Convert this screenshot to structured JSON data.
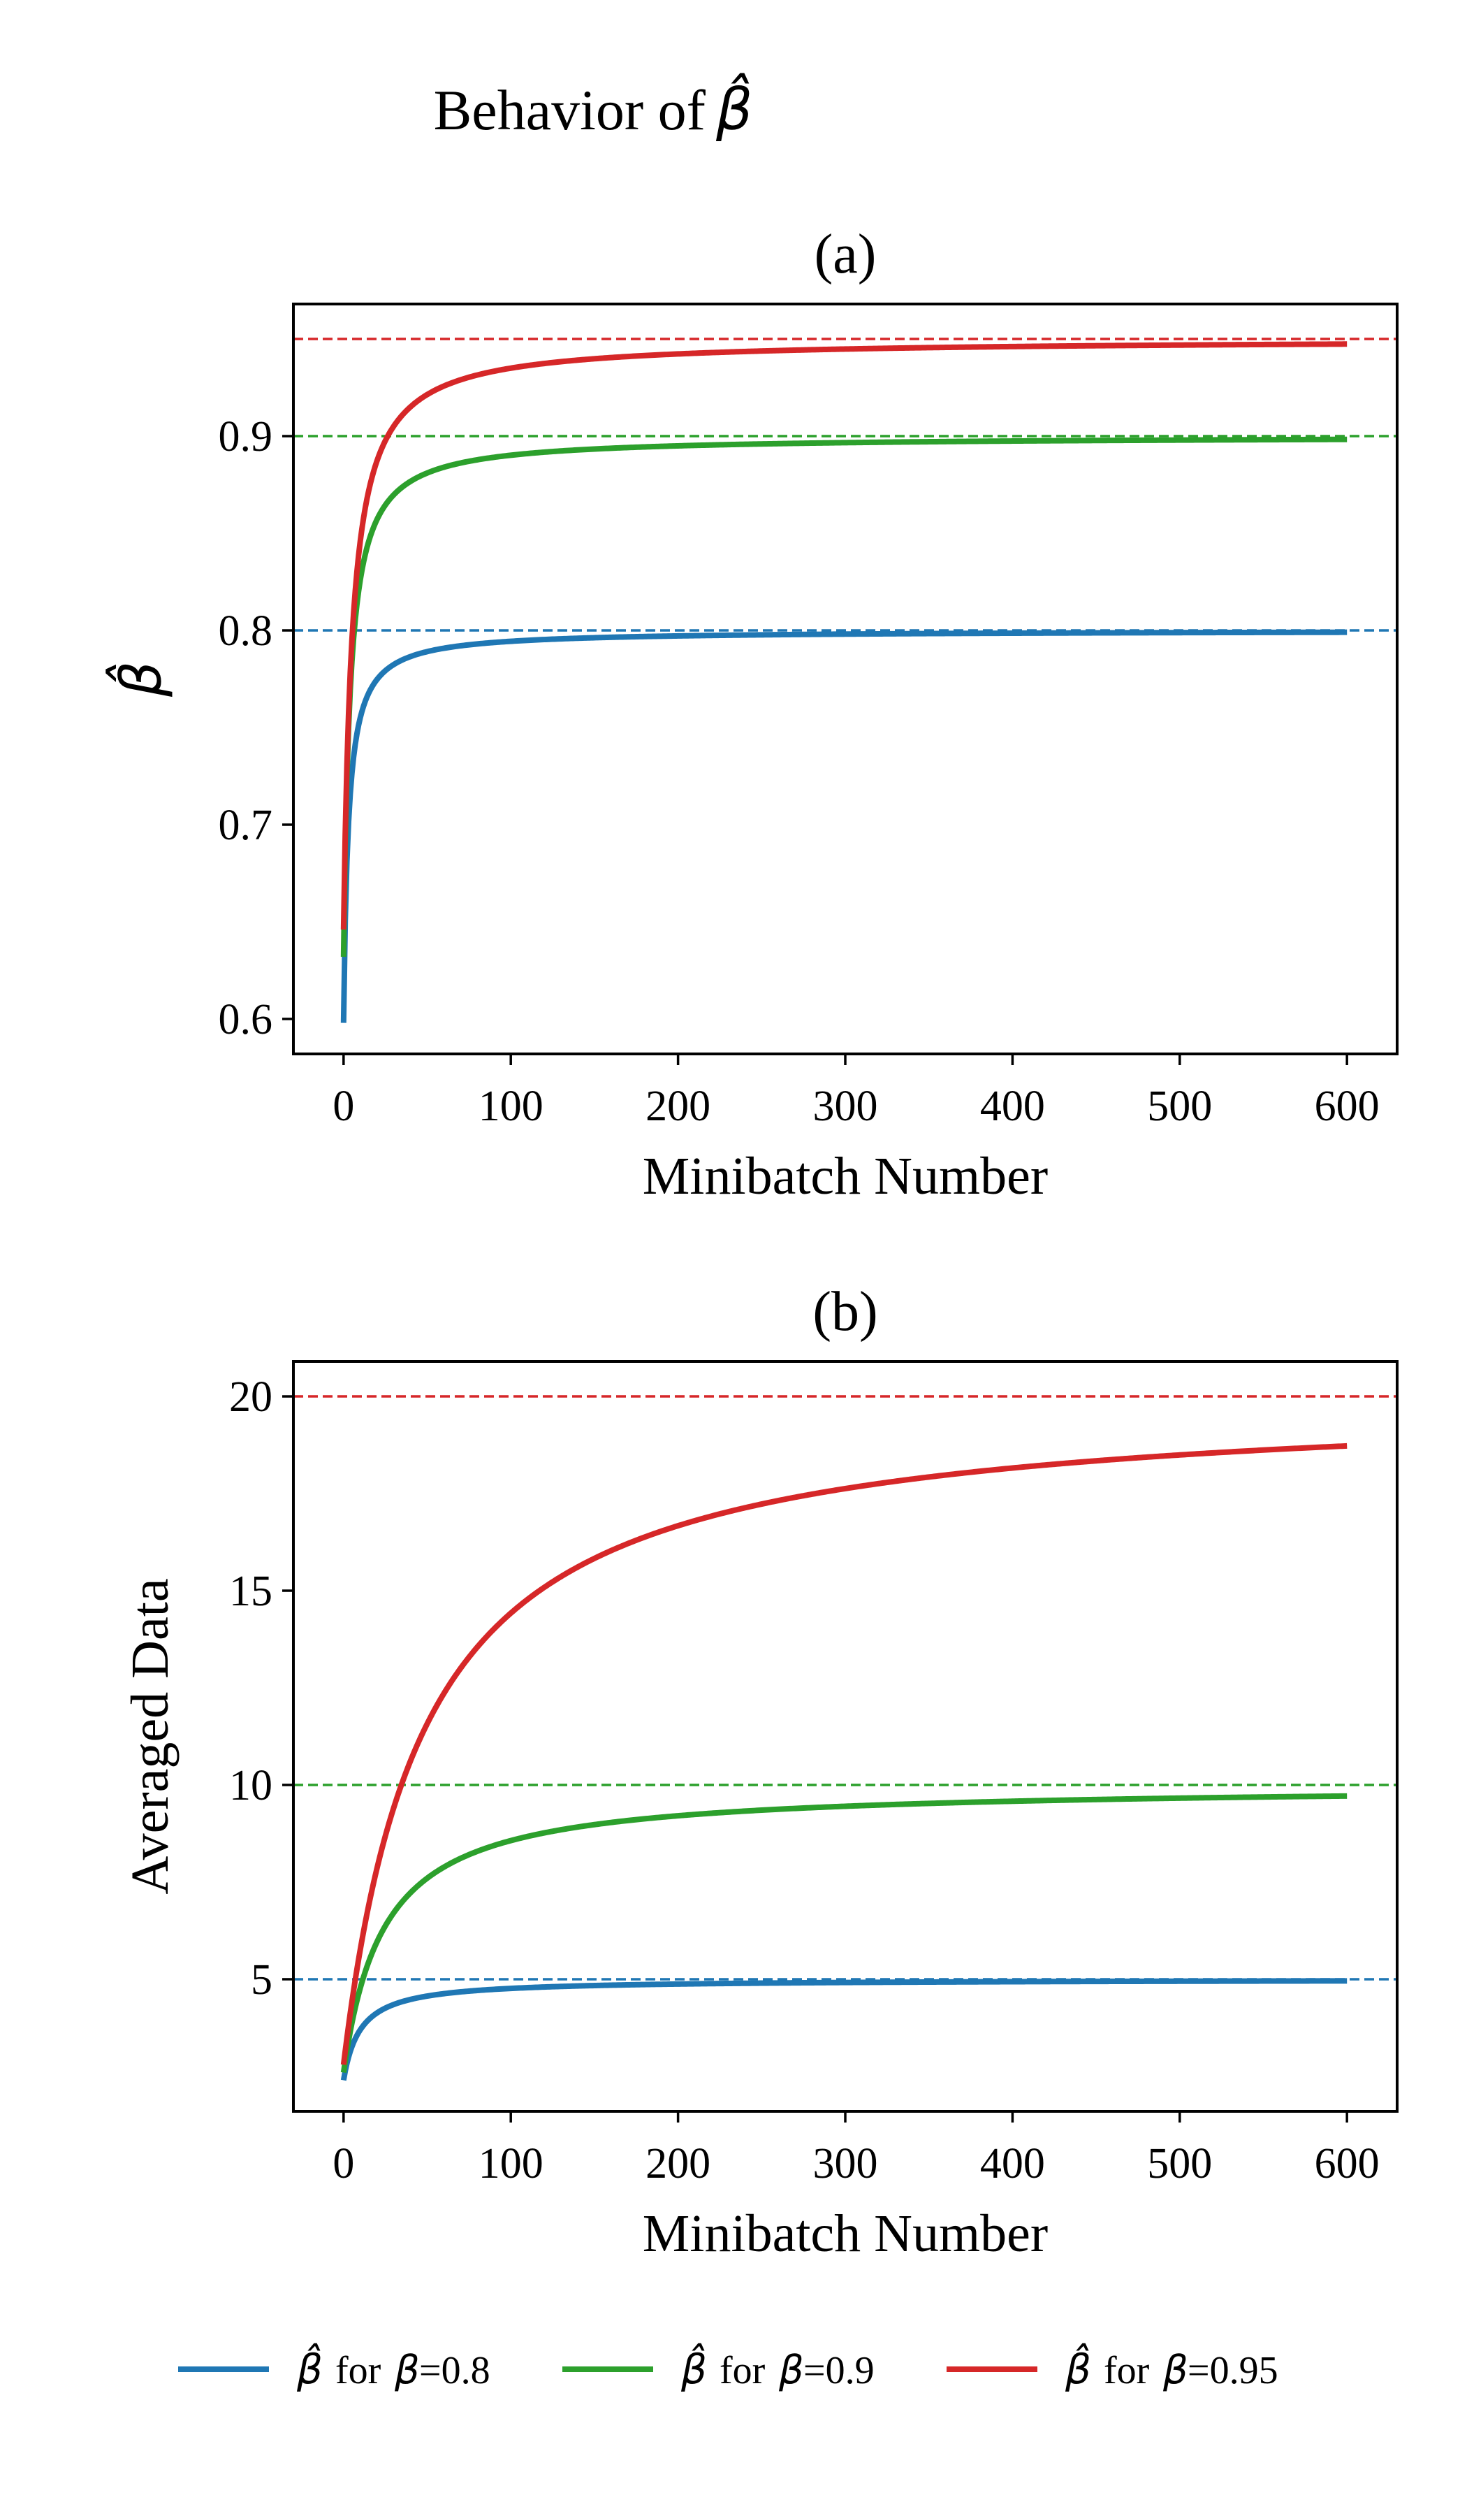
{
  "figure": {
    "suptitle": "Behavior of",
    "suptitle_symbol": "β̂"
  },
  "legend": {
    "placement": "bottom-center",
    "entries": [
      {
        "symbol": "β̂",
        "text_for": "for",
        "symbol2": "β",
        "text_value": "=0.8",
        "color": "#1f77b4"
      },
      {
        "symbol": "β̂",
        "text_for": "for",
        "symbol2": "β",
        "text_value": "=0.9",
        "color": "#2ca02c"
      },
      {
        "symbol": "β̂",
        "text_for": "for",
        "symbol2": "β",
        "text_value": "=0.95",
        "color": "#d62728"
      }
    ]
  },
  "chart_data": [
    {
      "type": "line",
      "title": "(a)",
      "xlabel": "Minibatch Number",
      "ylabel": "β̂",
      "ylabel_is_symbol": true,
      "xlim": [
        -30,
        630
      ],
      "ylim": [
        0.582,
        0.968
      ],
      "xticks": [
        0,
        100,
        200,
        300,
        400,
        500,
        600
      ],
      "yticks": [
        0.6,
        0.7,
        0.8,
        0.9
      ],
      "ytick_labels": [
        "0.6",
        "0.7",
        "0.8",
        "0.9"
      ],
      "grid": false,
      "model": "beta_hat",
      "series": [
        {
          "beta": 0.8,
          "color": "#1f77b4",
          "x_range": [
            0,
            600
          ],
          "start": 0.598,
          "asymptote": 0.8
        },
        {
          "beta": 0.9,
          "color": "#2ca02c",
          "x_range": [
            0,
            600
          ],
          "start": 0.632,
          "asymptote": 0.9
        },
        {
          "beta": 0.95,
          "color": "#d62728",
          "x_range": [
            0,
            600
          ],
          "start": 0.646,
          "asymptote": 0.95
        }
      ],
      "reference_lines": [
        {
          "y": 0.8,
          "color": "#1f77b4",
          "style": "dashed"
        },
        {
          "y": 0.9,
          "color": "#2ca02c",
          "style": "dashed"
        },
        {
          "y": 0.95,
          "color": "#d62728",
          "style": "dashed"
        }
      ]
    },
    {
      "type": "line",
      "title": "(b)",
      "xlabel": "Minibatch Number",
      "ylabel": "Averaged Data",
      "ylabel_is_symbol": false,
      "xlim": [
        -30,
        630
      ],
      "ylim": [
        1.6,
        20.9
      ],
      "xticks": [
        0,
        100,
        200,
        300,
        400,
        500,
        600
      ],
      "yticks": [
        5,
        10,
        15,
        20
      ],
      "ytick_labels": [
        "5",
        "10",
        "15",
        "20"
      ],
      "grid": false,
      "model": "averaged_data",
      "series": [
        {
          "beta": 0.8,
          "color": "#1f77b4",
          "x_range": [
            0,
            600
          ],
          "start": 2.4,
          "asymptote": 5
        },
        {
          "beta": 0.9,
          "color": "#2ca02c",
          "x_range": [
            0,
            600
          ],
          "start": 2.6,
          "asymptote": 10
        },
        {
          "beta": 0.95,
          "color": "#d62728",
          "x_range": [
            0,
            600
          ],
          "start": 2.8,
          "asymptote": 20
        }
      ],
      "reference_lines": [
        {
          "y": 5,
          "color": "#1f77b4",
          "style": "dashed"
        },
        {
          "y": 10,
          "color": "#2ca02c",
          "style": "dashed"
        },
        {
          "y": 20,
          "color": "#d62728",
          "style": "dashed"
        }
      ]
    }
  ]
}
